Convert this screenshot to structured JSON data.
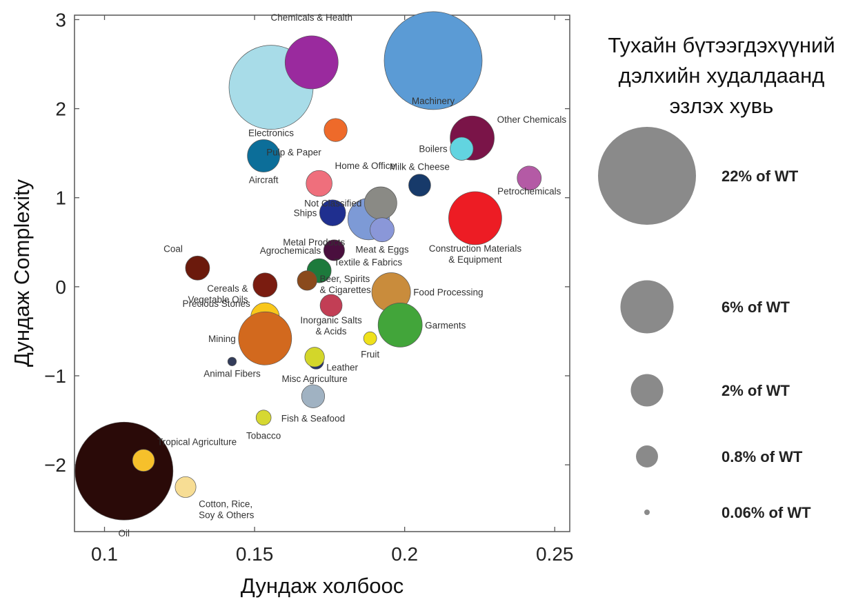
{
  "chart_data": {
    "type": "scatter",
    "xlabel": "Дундаж холбоос",
    "ylabel": "Дундаж Complexity",
    "xlim": [
      0.09,
      0.255
    ],
    "ylim": [
      -2.75,
      3.05
    ],
    "x_ticks": [
      0.1,
      0.15,
      0.2,
      0.25
    ],
    "x_tick_labels": [
      "0.1",
      "0.15",
      "0.2",
      "0.25"
    ],
    "y_ticks": [
      3,
      2,
      1,
      0,
      -1,
      -2
    ],
    "y_tick_labels": [
      "3",
      "2",
      "1",
      "0",
      "−1",
      "−2"
    ],
    "grid": false,
    "legend_position": "right",
    "size_measure": "share of world trade (%)",
    "points": [
      {
        "label": "Oil",
        "x": 0.1065,
        "y": -2.07,
        "share": 22,
        "color": "#2a0a08"
      },
      {
        "label": "Tropical Agriculture",
        "x": 0.113,
        "y": -1.95,
        "share": 0.8,
        "color": "#f6c02b"
      },
      {
        "label": "Cotton, Rice,\nSoy & Others",
        "x": 0.127,
        "y": -2.25,
        "share": 0.7,
        "color": "#f7dd94"
      },
      {
        "label": "Coal",
        "x": 0.131,
        "y": 0.21,
        "share": 1.0,
        "color": "#6b1a0c"
      },
      {
        "label": "Precious Stones",
        "x": 0.1535,
        "y": 0.02,
        "share": 1.0,
        "color": "#7a1c10"
      },
      {
        "label": "Cereals &\nVegetable Oils",
        "x": 0.1535,
        "y": -0.34,
        "share": 1.5,
        "color": "#f9c71a"
      },
      {
        "label": "Mining",
        "x": 0.1535,
        "y": -0.58,
        "share": 6,
        "color": "#d2691e"
      },
      {
        "label": "Animal Fibers",
        "x": 0.1425,
        "y": -0.84,
        "share": 0.05,
        "color": "#333c5a"
      },
      {
        "label": "Tobacco",
        "x": 0.153,
        "y": -1.47,
        "share": 0.3,
        "color": "#d6d832"
      },
      {
        "label": "Electronics",
        "x": 0.1555,
        "y": 2.24,
        "share": 16,
        "color": "#a8dce8"
      },
      {
        "label": "Aircraft",
        "x": 0.153,
        "y": 1.47,
        "share": 2,
        "color": "#0c6e99"
      },
      {
        "label": "Chemicals & Health",
        "x": 0.169,
        "y": 2.52,
        "share": 6,
        "color": "#9a2a9e"
      },
      {
        "label": "Pulp & Paper",
        "x": 0.177,
        "y": 1.76,
        "share": 0.9,
        "color": "#ee6a2a"
      },
      {
        "label": "Home & Office",
        "x": 0.1715,
        "y": 1.16,
        "share": 1.2,
        "color": "#ef6f7c"
      },
      {
        "label": "Ships",
        "x": 0.176,
        "y": 0.83,
        "share": 1.2,
        "color": "#1f2f8f"
      },
      {
        "label": "Metal Products",
        "x": 0.188,
        "y": 0.76,
        "share": 3.5,
        "color": "#7d9ad6"
      },
      {
        "label": "Not Classified",
        "x": 0.192,
        "y": 0.94,
        "share": 2,
        "color": "#8a8a85"
      },
      {
        "label": "Meat & Eggs",
        "x": 0.1925,
        "y": 0.64,
        "share": 1.0,
        "color": "#8a97d8"
      },
      {
        "label": "Agrochemicals",
        "x": 0.1765,
        "y": 0.41,
        "share": 0.7,
        "color": "#4a0f3e"
      },
      {
        "label": "Textile & Fabrics",
        "x": 0.1715,
        "y": 0.18,
        "share": 1.0,
        "color": "#1d7a3c"
      },
      {
        "label": "Beer, Spirits\n& Cigarettes",
        "x": 0.1675,
        "y": 0.07,
        "share": 0.6,
        "color": "#8a4a1c"
      },
      {
        "label": "Inorganic Salts\n& Acids",
        "x": 0.1755,
        "y": -0.21,
        "share": 0.8,
        "color": "#c23e55"
      },
      {
        "label": "Fruit",
        "x": 0.1885,
        "y": -0.58,
        "share": 0.2,
        "color": "#efe11b"
      },
      {
        "label": "Leather",
        "x": 0.1705,
        "y": -0.84,
        "share": 0.3,
        "color": "#22306b"
      },
      {
        "label": "Misc Agriculture",
        "x": 0.17,
        "y": -0.79,
        "share": 0.6,
        "color": "#d3d62a"
      },
      {
        "label": "Fish & Seafood",
        "x": 0.1695,
        "y": -1.23,
        "share": 0.9,
        "color": "#a0b2c2"
      },
      {
        "label": "Food Processing",
        "x": 0.1955,
        "y": -0.06,
        "share": 3,
        "color": "#c98c3c"
      },
      {
        "label": "Garments",
        "x": 0.1985,
        "y": -0.43,
        "share": 4,
        "color": "#42a53a"
      },
      {
        "label": "Machinery",
        "x": 0.2095,
        "y": 2.54,
        "share": 22,
        "color": "#5b9bd5"
      },
      {
        "label": "Other Chemicals",
        "x": 0.2225,
        "y": 1.67,
        "share": 4,
        "color": "#7a1448"
      },
      {
        "label": "Boilers",
        "x": 0.219,
        "y": 1.55,
        "share": 0.9,
        "color": "#62d4e0"
      },
      {
        "label": "Milk & Cheese",
        "x": 0.205,
        "y": 1.14,
        "share": 0.8,
        "color": "#173a6a"
      },
      {
        "label": "Petrochemicals",
        "x": 0.2415,
        "y": 1.22,
        "share": 1.0,
        "color": "#b45aa5"
      },
      {
        "label": "Construction Materials\n& Equipment",
        "x": 0.2235,
        "y": 0.77,
        "share": 6,
        "color": "#ed1c24"
      }
    ],
    "legend": {
      "title": "Тухайн бүтээгдэхүүний\nдэлхийн худалдаанд\nэзлэх хувь",
      "color": "#8a8a8a",
      "entries": [
        {
          "label": "22% of WT",
          "share": 22
        },
        {
          "label": "6% of WT",
          "share": 6
        },
        {
          "label": "2% of WT",
          "share": 2
        },
        {
          "label": "0.8% of WT",
          "share": 0.8
        },
        {
          "label": "0.06% of WT",
          "share": 0.06
        }
      ]
    }
  }
}
